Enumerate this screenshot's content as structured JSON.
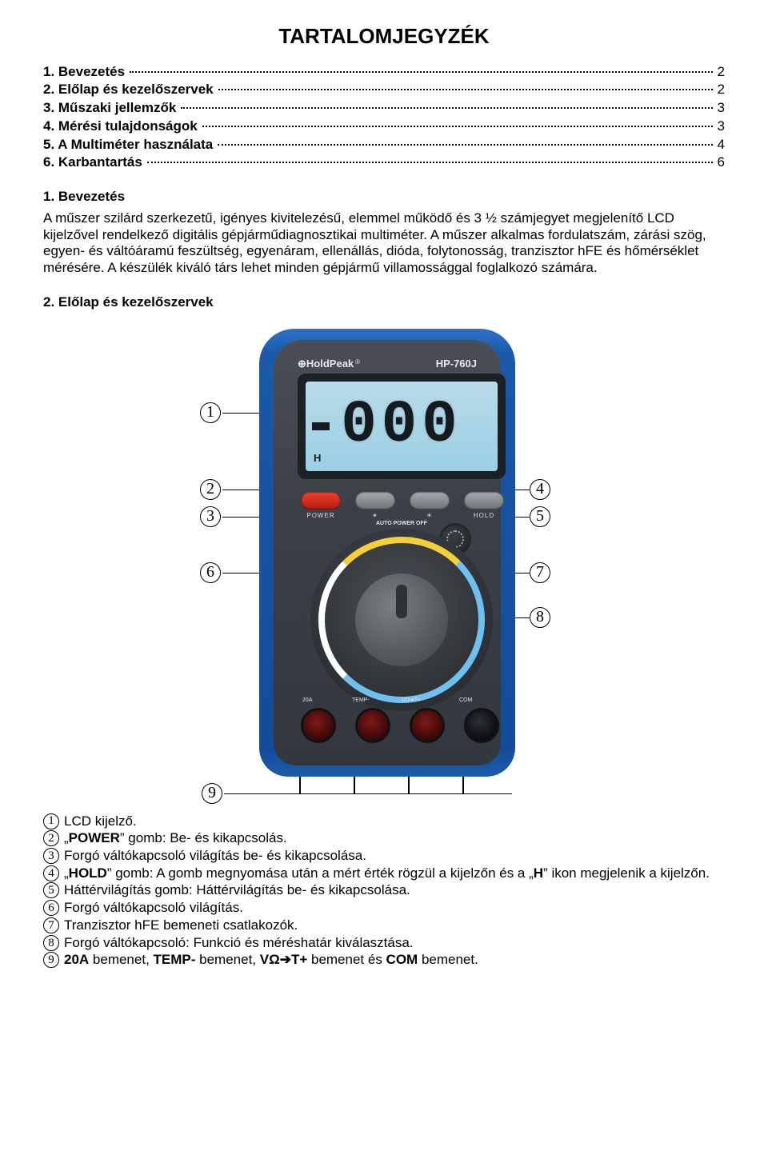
{
  "title": "TARTALOMJEGYZÉK",
  "toc": [
    {
      "label": "1. Bevezetés",
      "page": "2"
    },
    {
      "label": "2. Előlap és kezelőszervek",
      "page": "2"
    },
    {
      "label": "3. Műszaki jellemzők",
      "page": "3"
    },
    {
      "label": "4. Mérési tulajdonságok",
      "page": "3"
    },
    {
      "label": "5. A Multiméter használata",
      "page": "4"
    },
    {
      "label": "6. Karbantartás",
      "page": "6"
    }
  ],
  "h1": "1. Bevezetés",
  "intro": "A műszer szilárd szerkezetű, igényes kivitelezésű, elemmel működő és 3 ½ számjegyet megjelenítő LCD kijelzővel rendelkező digitális gépjárműdiagnosztikai multiméter. A műszer alkalmas fordulatszám, zárási szög, egyen- és váltóáramú feszültség, egyenáram, ellenállás, dióda, folytonosság, tranzisztor hFE és hőmérséklet mérésére. A készülék kiváló társ lehet minden gépjármű villamossággal foglalkozó számára.",
  "h2": "2. Előlap és kezelőszervek",
  "device": {
    "brand": "HoldPeak",
    "model": "HP-760J",
    "lcd_value": "000",
    "lcd_hold_indicator": "H",
    "buttons": [
      {
        "id": "power",
        "label": "POWER"
      },
      {
        "id": "dial-light",
        "label": "✴"
      },
      {
        "id": "backlight",
        "label": "☀"
      },
      {
        "id": "hold",
        "label": "HOLD"
      }
    ],
    "auto_power_off_label": "AUTO POWER OFF",
    "jack_labels": [
      "20A",
      "TEMP-",
      "VΩ➔T+",
      "COM"
    ],
    "colors": {
      "case": "#1b58a7",
      "face": "#3b4046",
      "lcd": "#9acfe4",
      "power_btn": "#e1301f",
      "ring_yellow": "#f3cf3a",
      "ring_blue": "#6fc0ee",
      "ring_white": "#ffffff",
      "jack_red": "#7c1a1a",
      "jack_black": "#0c0d0f"
    }
  },
  "callouts": {
    "c1": "1",
    "c2": "2",
    "c3": "3",
    "c4": "4",
    "c5": "5",
    "c6": "6",
    "c7": "7",
    "c8": "8",
    "c9": "9"
  },
  "legend": [
    {
      "n": "1",
      "text": "LCD kijelző."
    },
    {
      "n": "2",
      "text_html": "„<b>POWER</b>” gomb: Be- és kikapcsolás."
    },
    {
      "n": "3",
      "text": "Forgó váltókapcsoló világítás be- és kikapcsolása."
    },
    {
      "n": "4",
      "text_html": "„<b>HOLD</b>” gomb: A gomb megnyomása után a mért érték rögzül a kijelzőn és a „<b>H</b>” ikon megjelenik a kijelzőn."
    },
    {
      "n": "5",
      "text": "Háttérvilágítás gomb: Háttérvilágítás be- és kikapcsolása."
    },
    {
      "n": "6",
      "text": "Forgó váltókapcsoló világítás."
    },
    {
      "n": "7",
      "text": "Tranzisztor hFE bemeneti csatlakozók."
    },
    {
      "n": "8",
      "text": "Forgó váltókapcsoló: Funkció és méréshatár kiválasztása."
    },
    {
      "n": "9",
      "text_html": "<b>20A</b> bemenet, <b>TEMP-</b> bemenet, <b>VΩ➔T+</b> bemenet és <b>COM</b> bemenet."
    }
  ]
}
